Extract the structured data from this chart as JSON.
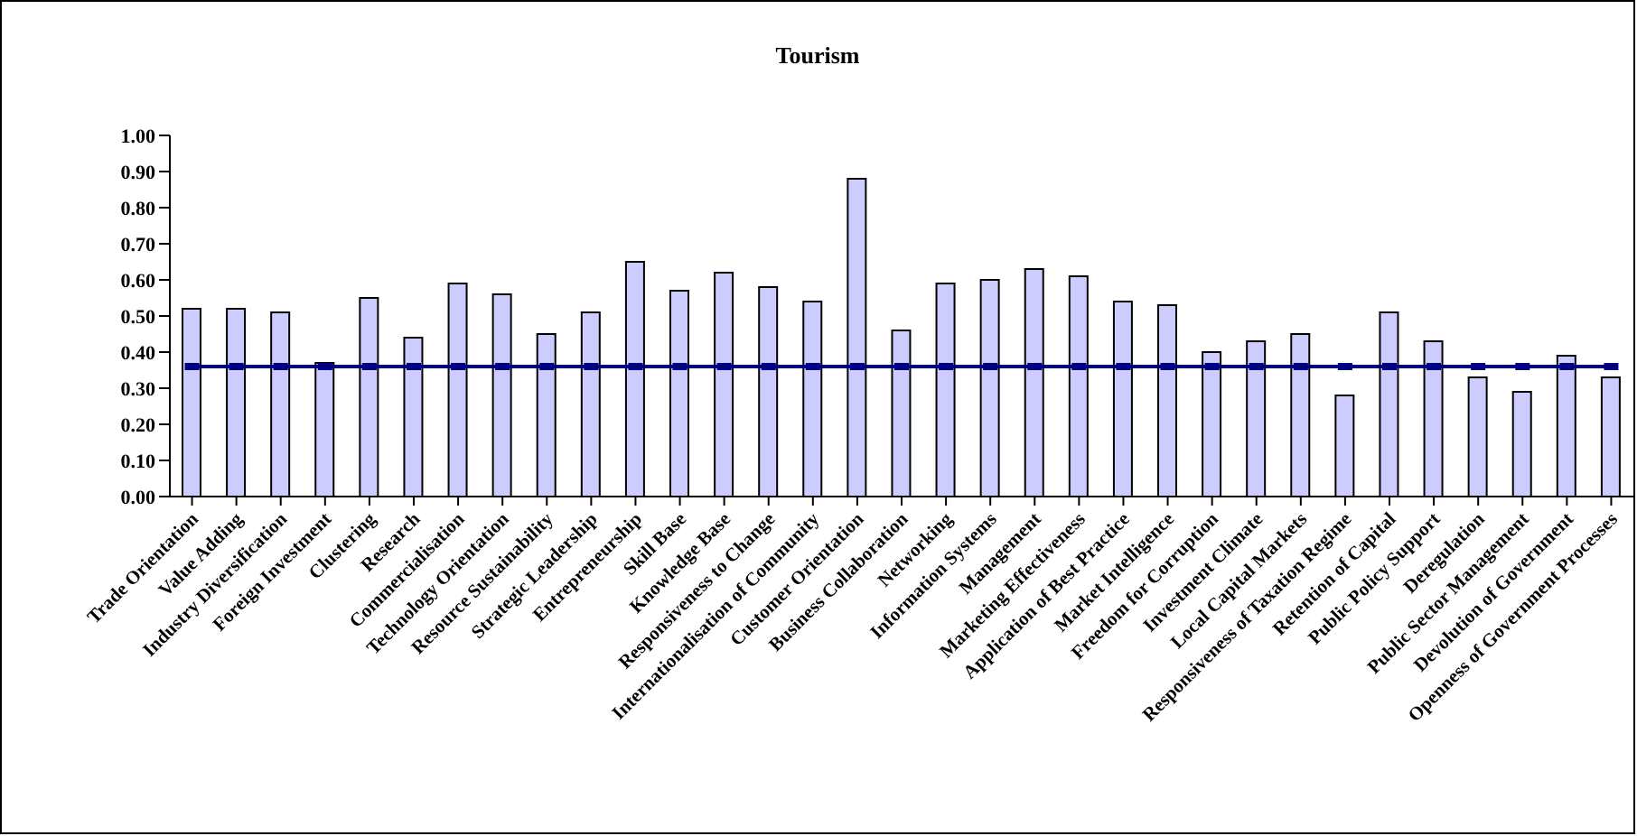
{
  "chart_data": {
    "type": "bar",
    "title": "Tourism",
    "categories": [
      "Trade Orientation",
      "Value Adding",
      "Industry Diversification",
      "Foreign Investment",
      "Clustering",
      "Research",
      "Commercialisation",
      "Technology Orientation",
      "Resource Sustainability",
      "Strategic Leadership",
      "Entrepreneurship",
      "Skill Base",
      "Knowledge Base",
      "Responsiveness to Change",
      "Internationalisation of Community",
      "Customer Orientation",
      "Business Collaboration",
      "Networking",
      "Information Systems",
      "Management",
      "Marketing Effectiveness",
      "Application of Best Practice",
      "Market Intelligence",
      "Freedom for Corruption",
      "Investment Climate",
      "Local Capital Markets",
      "Responsiveness of Taxation Regime",
      "Retention of Capital",
      "Public Policy Support",
      "Deregulation",
      "Public Sector Management",
      "Devolution of Government",
      "Openness of Government Processes"
    ],
    "series": [
      {
        "color": "#ccccff",
        "values": [
          0.52,
          0.52,
          0.51,
          0.37,
          0.55,
          0.44,
          0.59,
          0.56,
          0.45,
          0.51,
          0.65,
          0.57,
          0.62,
          0.58,
          0.54,
          0.88,
          0.46,
          0.59,
          0.6,
          0.63,
          0.61,
          0.54,
          0.53,
          0.4,
          0.43,
          0.45,
          0.28,
          0.51,
          0.43,
          0.33,
          0.29,
          0.39,
          0.33
        ]
      },
      {
        "type": "line",
        "color": "#000080",
        "marker": "square",
        "values": [
          0.36,
          0.36,
          0.36,
          0.36,
          0.36,
          0.36,
          0.36,
          0.36,
          0.36,
          0.36,
          0.36,
          0.36,
          0.36,
          0.36,
          0.36,
          0.36,
          0.36,
          0.36,
          0.36,
          0.36,
          0.36,
          0.36,
          0.36,
          0.36,
          0.36,
          0.36,
          0.36,
          0.36,
          0.36,
          0.36,
          0.36,
          0.36,
          0.36
        ]
      }
    ],
    "ylim": [
      0,
      1
    ],
    "yticks": [
      {
        "value": 0,
        "label": "0.00"
      },
      {
        "value": 0.1,
        "label": "0.10"
      },
      {
        "value": 0.2,
        "label": "0.20"
      },
      {
        "value": 0.3,
        "label": "0.30"
      },
      {
        "value": 0.4,
        "label": "0.40"
      },
      {
        "value": 0.5,
        "label": "0.50"
      },
      {
        "value": 0.6,
        "label": "0.60"
      },
      {
        "value": 0.7,
        "label": "0.70"
      },
      {
        "value": 0.8,
        "label": "0.80"
      },
      {
        "value": 0.9,
        "label": "0.90"
      },
      {
        "value": 1,
        "label": "1.00"
      }
    ],
    "grid": false,
    "legend": false
  }
}
